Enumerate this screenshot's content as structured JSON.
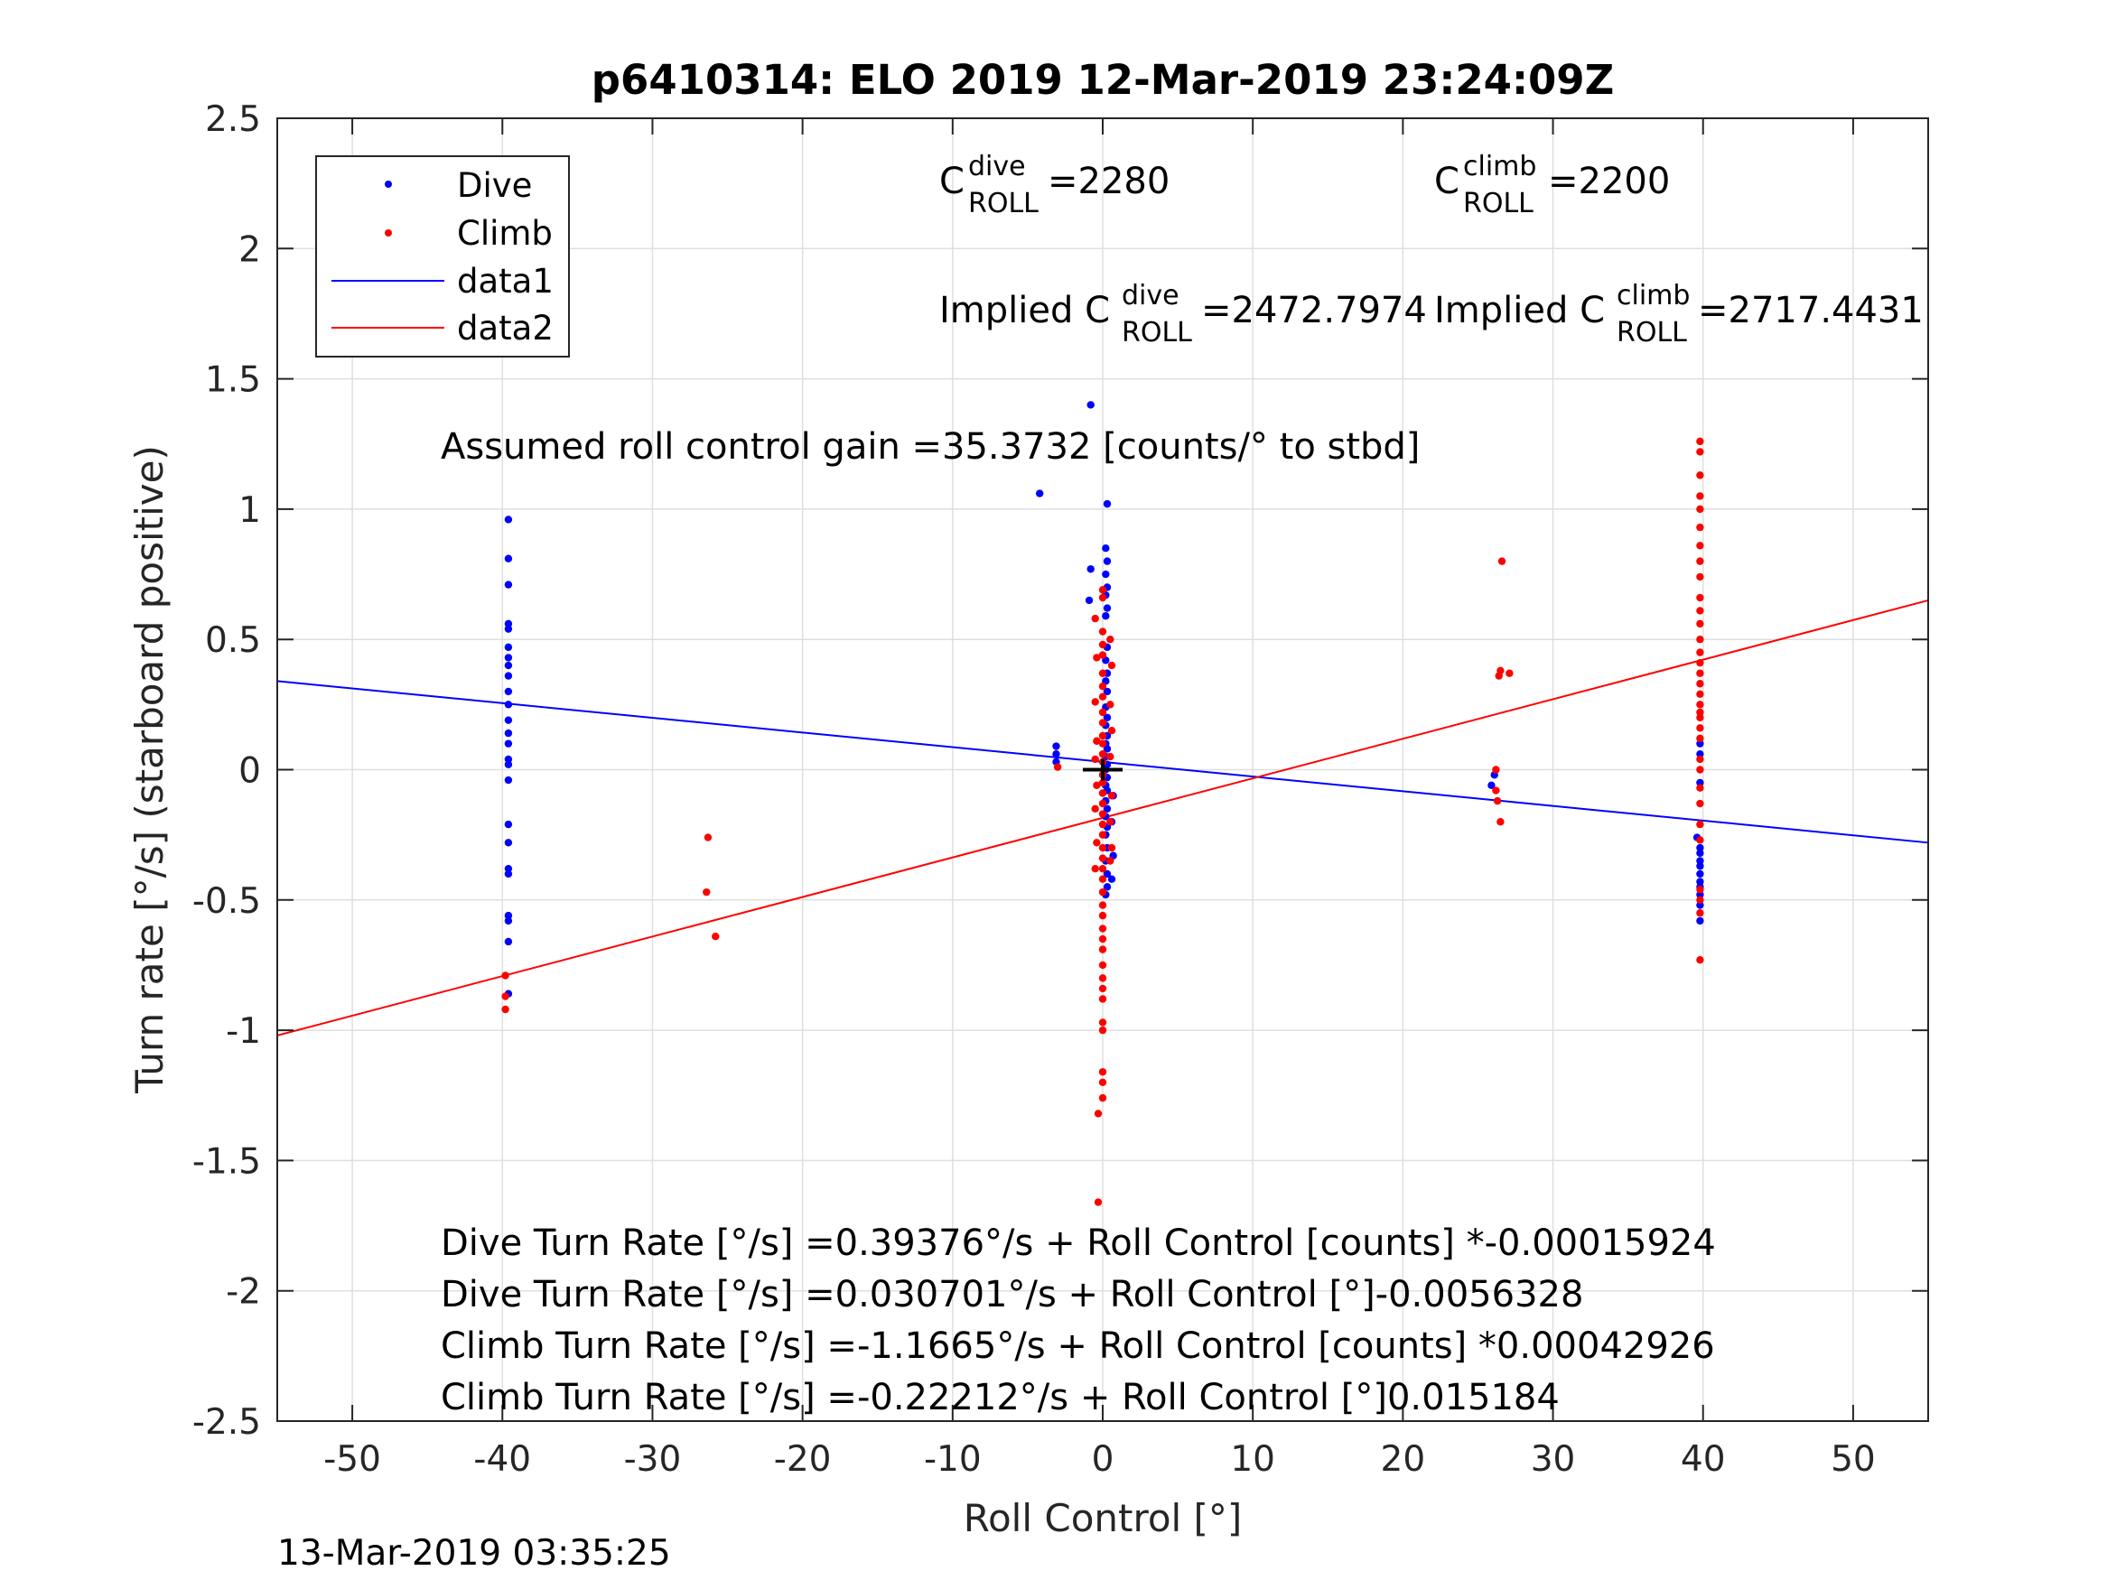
{
  "chart_data": {
    "type": "scatter",
    "title": "p6410314: ELO 2019 12-Mar-2019 23:24:09Z",
    "xlabel": "Roll Control [°]",
    "ylabel": "Turn rate [°/s] (starboard positive)",
    "xlim": [
      -55,
      55
    ],
    "ylim": [
      -2.5,
      2.5
    ],
    "xticks": [
      -50,
      -40,
      -30,
      -20,
      -10,
      0,
      10,
      20,
      30,
      40,
      50
    ],
    "xtick_labels": [
      "-50",
      "-40",
      "-30",
      "-20",
      "-10",
      "0",
      "10",
      "20",
      "30",
      "40",
      "50"
    ],
    "yticks": [
      2.5,
      2,
      1.5,
      1,
      0.5,
      0,
      -0.5,
      -1,
      -1.5,
      -2,
      -2.5
    ],
    "ytick_labels": [
      "2.5",
      "2",
      "1.5",
      "1",
      "0.5",
      "0",
      "-0.5",
      "-1",
      "-1.5",
      "-2",
      "-2.5"
    ],
    "grid": true,
    "legend_position": "top-left",
    "legend": [
      "Dive",
      "Climb",
      "data1",
      "data2"
    ],
    "colors": {
      "dive": "#0000ff",
      "climb": "#ff0000",
      "mean_marker": "#000000"
    },
    "series": [
      {
        "name": "Dive",
        "kind": "points",
        "points": [
          [
            -39.6,
            0.96
          ],
          [
            -39.6,
            0.81
          ],
          [
            -39.6,
            0.71
          ],
          [
            -39.6,
            0.56
          ],
          [
            -39.6,
            0.54
          ],
          [
            -39.6,
            0.47
          ],
          [
            -39.6,
            0.43
          ],
          [
            -39.6,
            0.4
          ],
          [
            -39.6,
            0.36
          ],
          [
            -39.6,
            0.3
          ],
          [
            -39.6,
            0.25
          ],
          [
            -39.6,
            0.19
          ],
          [
            -39.6,
            0.14
          ],
          [
            -39.6,
            0.1
          ],
          [
            -39.6,
            0.04
          ],
          [
            -39.6,
            0.02
          ],
          [
            -39.6,
            -0.04
          ],
          [
            -39.6,
            -0.21
          ],
          [
            -39.6,
            -0.28
          ],
          [
            -39.6,
            -0.38
          ],
          [
            -39.6,
            -0.4
          ],
          [
            -39.6,
            -0.56
          ],
          [
            -39.6,
            -0.58
          ],
          [
            -39.6,
            -0.66
          ],
          [
            -39.6,
            -0.86
          ],
          [
            -4.2,
            1.06
          ],
          [
            -3.1,
            0.09
          ],
          [
            -3.1,
            0.06
          ],
          [
            -3.1,
            0.03
          ],
          [
            -0.8,
            1.4
          ],
          [
            -0.8,
            0.77
          ],
          [
            -0.9,
            0.65
          ],
          [
            0.3,
            1.02
          ],
          [
            0.2,
            0.85
          ],
          [
            0.3,
            0.8
          ],
          [
            0.2,
            0.75
          ],
          [
            0.3,
            0.7
          ],
          [
            0.2,
            0.67
          ],
          [
            0.3,
            0.62
          ],
          [
            0.2,
            0.59
          ],
          [
            0.3,
            0.47
          ],
          [
            0.2,
            0.42
          ],
          [
            0.3,
            0.37
          ],
          [
            0.2,
            0.34
          ],
          [
            0.3,
            0.3
          ],
          [
            0.2,
            0.24
          ],
          [
            0.3,
            0.2
          ],
          [
            0.2,
            0.17
          ],
          [
            0.3,
            0.13
          ],
          [
            0.2,
            0.1
          ],
          [
            0.3,
            0.08
          ],
          [
            0.2,
            0.05
          ],
          [
            0.3,
            0.02
          ],
          [
            0.2,
            0.0
          ],
          [
            0.3,
            -0.03
          ],
          [
            0.2,
            -0.06
          ],
          [
            0.3,
            -0.08
          ],
          [
            0.2,
            -0.12
          ],
          [
            0.3,
            -0.15
          ],
          [
            0.2,
            -0.18
          ],
          [
            0.3,
            -0.22
          ],
          [
            0.2,
            -0.25
          ],
          [
            0.3,
            -0.3
          ],
          [
            0.2,
            -0.35
          ],
          [
            0.3,
            -0.4
          ],
          [
            0.3,
            -0.45
          ],
          [
            0.2,
            -0.48
          ],
          [
            0.6,
            -0.42
          ],
          [
            0.7,
            -0.33
          ],
          [
            0.6,
            -0.2
          ],
          [
            0.7,
            -0.1
          ],
          [
            25.9,
            -0.06
          ],
          [
            26.1,
            -0.02
          ],
          [
            39.8,
            0.1
          ],
          [
            39.8,
            0.06
          ],
          [
            39.8,
            -0.05
          ],
          [
            39.8,
            -0.3
          ],
          [
            39.8,
            -0.32
          ],
          [
            39.8,
            -0.35
          ],
          [
            39.8,
            -0.37
          ],
          [
            39.8,
            -0.4
          ],
          [
            39.8,
            -0.43
          ],
          [
            39.8,
            -0.45
          ],
          [
            39.8,
            -0.48
          ],
          [
            39.8,
            -0.52
          ],
          [
            39.8,
            -0.58
          ],
          [
            39.6,
            -0.26
          ]
        ]
      },
      {
        "name": "Climb",
        "kind": "points",
        "points": [
          [
            -39.8,
            -0.79
          ],
          [
            -39.8,
            -0.87
          ],
          [
            -39.8,
            -0.92
          ],
          [
            -26.3,
            -0.26
          ],
          [
            -26.4,
            -0.47
          ],
          [
            -25.8,
            -0.64
          ],
          [
            -3.0,
            0.01
          ],
          [
            -0.5,
            0.58
          ],
          [
            -0.4,
            0.43
          ],
          [
            -0.5,
            0.26
          ],
          [
            -0.4,
            0.11
          ],
          [
            -0.5,
            0.04
          ],
          [
            -0.4,
            -0.06
          ],
          [
            -0.5,
            -0.15
          ],
          [
            -0.4,
            -0.28
          ],
          [
            -0.5,
            -0.38
          ],
          [
            -0.3,
            -1.32
          ],
          [
            -0.3,
            -1.66
          ],
          [
            0.0,
            0.69
          ],
          [
            0.0,
            0.66
          ],
          [
            0.0,
            0.53
          ],
          [
            0.0,
            0.48
          ],
          [
            0.0,
            0.44
          ],
          [
            0.0,
            0.37
          ],
          [
            0.0,
            0.32
          ],
          [
            0.0,
            0.28
          ],
          [
            0.0,
            0.22
          ],
          [
            0.0,
            0.18
          ],
          [
            0.0,
            0.13
          ],
          [
            0.0,
            0.1
          ],
          [
            0.0,
            0.06
          ],
          [
            0.0,
            0.03
          ],
          [
            0.0,
            -0.02
          ],
          [
            0.0,
            -0.05
          ],
          [
            0.0,
            -0.09
          ],
          [
            0.0,
            -0.13
          ],
          [
            0.0,
            -0.17
          ],
          [
            0.0,
            -0.21
          ],
          [
            0.0,
            -0.25
          ],
          [
            0.0,
            -0.3
          ],
          [
            0.0,
            -0.34
          ],
          [
            0.0,
            -0.38
          ],
          [
            0.0,
            -0.42
          ],
          [
            0.0,
            -0.47
          ],
          [
            0.0,
            -0.52
          ],
          [
            0.0,
            -0.56
          ],
          [
            0.0,
            -0.61
          ],
          [
            0.0,
            -0.65
          ],
          [
            0.0,
            -0.69
          ],
          [
            0.0,
            -0.75
          ],
          [
            0.0,
            -0.8
          ],
          [
            0.0,
            -0.84
          ],
          [
            0.0,
            -0.88
          ],
          [
            0.0,
            -0.97
          ],
          [
            0.0,
            -1.0
          ],
          [
            0.0,
            -1.16
          ],
          [
            0.0,
            -1.2
          ],
          [
            0.0,
            -1.26
          ],
          [
            0.5,
            0.5
          ],
          [
            0.6,
            0.4
          ],
          [
            0.5,
            0.25
          ],
          [
            0.6,
            0.15
          ],
          [
            0.5,
            0.05
          ],
          [
            0.6,
            -0.1
          ],
          [
            0.5,
            -0.2
          ],
          [
            0.6,
            -0.3
          ],
          [
            0.5,
            -0.35
          ],
          [
            26.6,
            0.8
          ],
          [
            26.5,
            0.38
          ],
          [
            26.4,
            0.36
          ],
          [
            27.1,
            0.37
          ],
          [
            26.2,
            0.0
          ],
          [
            26.2,
            -0.08
          ],
          [
            26.3,
            -0.12
          ],
          [
            26.5,
            -0.2
          ],
          [
            39.8,
            1.26
          ],
          [
            39.8,
            1.22
          ],
          [
            39.8,
            1.13
          ],
          [
            39.8,
            1.05
          ],
          [
            39.8,
            1.0
          ],
          [
            39.8,
            0.93
          ],
          [
            39.8,
            0.86
          ],
          [
            39.8,
            0.8
          ],
          [
            39.8,
            0.74
          ],
          [
            39.8,
            0.66
          ],
          [
            39.8,
            0.61
          ],
          [
            39.8,
            0.56
          ],
          [
            39.8,
            0.5
          ],
          [
            39.8,
            0.45
          ],
          [
            39.8,
            0.41
          ],
          [
            39.8,
            0.37
          ],
          [
            39.8,
            0.33
          ],
          [
            39.8,
            0.29
          ],
          [
            39.8,
            0.25
          ],
          [
            39.8,
            0.22
          ],
          [
            39.8,
            0.2
          ],
          [
            39.8,
            0.16
          ],
          [
            39.8,
            0.12
          ],
          [
            39.8,
            0.04
          ],
          [
            39.8,
            0.0
          ],
          [
            39.8,
            -0.07
          ],
          [
            39.8,
            -0.13
          ],
          [
            39.8,
            -0.21
          ],
          [
            39.8,
            -0.27
          ],
          [
            39.8,
            -0.46
          ],
          [
            39.8,
            -0.5
          ],
          [
            39.8,
            -0.55
          ],
          [
            39.8,
            -0.73
          ]
        ]
      },
      {
        "name": "data1",
        "kind": "line",
        "points": [
          [
            -55,
            0.34
          ],
          [
            55,
            -0.28
          ]
        ]
      },
      {
        "name": "data2",
        "kind": "line",
        "points": [
          [
            -55,
            -1.02
          ],
          [
            55,
            0.65
          ]
        ]
      }
    ],
    "mean_marker": {
      "x": 0,
      "y": 0
    },
    "annotations": {
      "c_dive_base": "C",
      "c_dive_sup": "dive",
      "c_dive_sub": "ROLL",
      "c_dive_value": " =2280",
      "c_climb_base": "C",
      "c_climb_sup": "climb",
      "c_climb_sub": "ROLL",
      "c_climb_value": " =2200",
      "implied_dive_prefix": "Implied C",
      "implied_dive_sup": "dive",
      "implied_dive_sub": "ROLL",
      "implied_dive_value": " =2472.7974",
      "implied_climb_prefix": "Implied C",
      "implied_climb_sup": "climb",
      "implied_climb_sub": "ROLL",
      "implied_climb_value": " =2717.4431",
      "gain": "Assumed roll control gain =35.3732 [counts/° to stbd]",
      "eq1": "Dive Turn Rate [°/s] =0.39376°/s + Roll Control [counts] *-0.00015924",
      "eq2": "Dive Turn Rate [°/s] =0.030701°/s + Roll Control [°]-0.0056328",
      "eq3": "Climb Turn Rate [°/s] =-1.1665°/s + Roll Control [counts] *0.00042926",
      "eq4": "Climb Turn Rate [°/s] =-0.22212°/s + Roll Control [°]0.015184"
    },
    "timestamp": "13-Mar-2019 03:35:25"
  }
}
